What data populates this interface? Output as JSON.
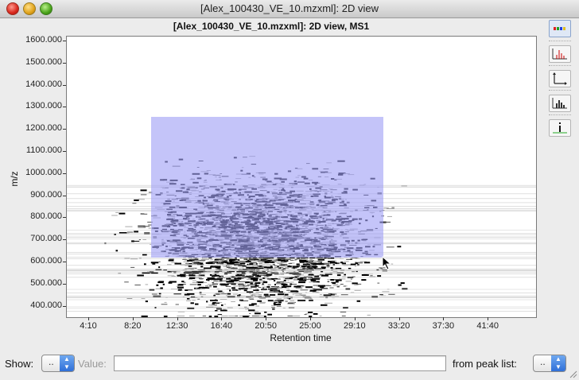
{
  "window": {
    "title": "[Alex_100430_VE_10.mzxml]: 2D view"
  },
  "plot": {
    "title": "[Alex_100430_VE_10.mzxml]: 2D view, MS1",
    "ylabel": "m/z",
    "xlabel": "Retention time",
    "yticks": [
      "1600.000",
      "1500.000",
      "1400.000",
      "1300.000",
      "1200.000",
      "1100.000",
      "1000.000",
      "900.000",
      "800.000",
      "700.000",
      "600.000",
      "500.000",
      "400.000"
    ],
    "xticks": [
      "4:10",
      "8:20",
      "12:30",
      "16:40",
      "20:50",
      "25:00",
      "29:10",
      "33:20",
      "37:30",
      "41:40"
    ],
    "selection_color": "#9f9ff5"
  },
  "toolbar": {
    "icons": [
      "color-palette-icon",
      "peak-chart-icon",
      "axes-icon",
      "histogram-icon",
      "info-icon"
    ]
  },
  "bottom": {
    "show_label": "Show:",
    "show_value": "..",
    "value_label": "Value:",
    "value_text": "",
    "peaklist_label": "from peak list:",
    "peaklist_value": ".."
  }
}
